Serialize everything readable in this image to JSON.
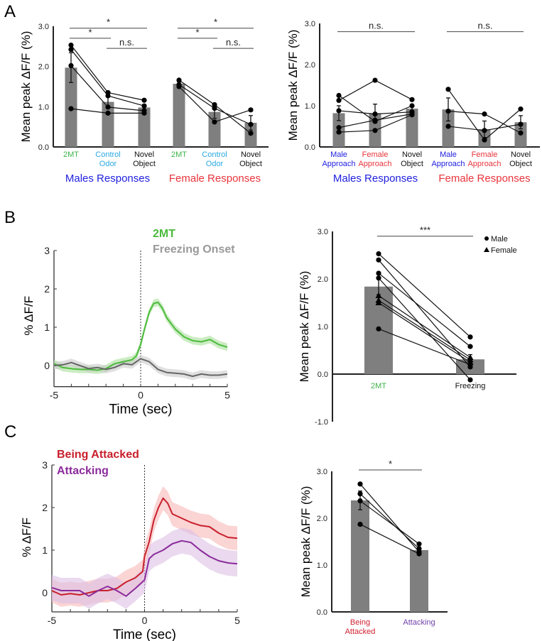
{
  "panel_letters": [
    "A",
    "B",
    "C"
  ],
  "chart_data": [
    {
      "type": "bar",
      "ylabel": "Mean peak  ΔF/F (%)",
      "y_ticks": [
        "0.0",
        "1.0",
        "2.0",
        "3.0"
      ],
      "ylim": [
        0,
        3
      ],
      "groups": [
        {
          "label": "Males Responses",
          "color": "#2020e0",
          "categories": [
            {
              "label": [
                "2MT"
              ],
              "color": "#3cb44a"
            },
            {
              "label": [
                "Control",
                "Odor"
              ],
              "color": "#29a9e0"
            },
            {
              "label": [
                "Novel",
                "Object"
              ],
              "color": "#111111"
            }
          ],
          "means": [
            1.97,
            1.12,
            0.98
          ],
          "sem": [
            0.37,
            0.14,
            0.07
          ],
          "subjects": [
            [
              2.53,
              1.35,
              1.16
            ],
            [
              2.42,
              1.27,
              1.02
            ],
            [
              2.02,
              0.99,
              0.9
            ],
            [
              0.95,
              0.84,
              0.84
            ]
          ]
        },
        {
          "label": "Female Responses",
          "color": "#e8343c",
          "categories": [
            {
              "label": [
                "2MT"
              ],
              "color": "#3cb44a"
            },
            {
              "label": [
                "Control",
                "Odor"
              ],
              "color": "#29a9e0"
            },
            {
              "label": [
                "Novel",
                "Object"
              ],
              "color": "#111111"
            }
          ],
          "means": [
            1.57,
            0.87,
            0.6
          ],
          "sem": [
            0.05,
            0.16,
            0.18
          ],
          "subjects": [
            [
              1.66,
              1.05,
              0.34
            ],
            [
              1.55,
              0.96,
              0.56
            ],
            [
              1.5,
              0.62,
              0.92
            ]
          ]
        }
      ],
      "significance": [
        {
          "from": 0,
          "to": 2,
          "level": 2.95,
          "label": "*"
        },
        {
          "from": 0,
          "to": 1,
          "level": 2.7,
          "label": "*"
        },
        {
          "from": 1,
          "to": 2,
          "level": 2.45,
          "label": "n.s."
        },
        {
          "from": 3,
          "to": 5,
          "level": 2.95,
          "label": "*"
        },
        {
          "from": 3,
          "to": 4,
          "level": 2.7,
          "label": "*"
        },
        {
          "from": 4,
          "to": 5,
          "level": 2.45,
          "label": "n.s."
        }
      ]
    },
    {
      "type": "bar",
      "ylabel": "Mean peak  ΔF/F (%)",
      "y_ticks": [
        "0.0",
        "1.0",
        "2.0",
        "3.0"
      ],
      "ylim": [
        0,
        3
      ],
      "groups": [
        {
          "label": "Males Responses",
          "color": "#2020e0",
          "categories": [
            {
              "label": [
                "Male",
                "Approach"
              ],
              "color": "#2020e0"
            },
            {
              "label": [
                "Female",
                "Approach"
              ],
              "color": "#e8343c"
            },
            {
              "label": [
                "Novel",
                "Object"
              ],
              "color": "#111111"
            }
          ],
          "means": [
            0.82,
            0.82,
            0.93
          ],
          "sem": [
            0.18,
            0.22,
            0.05
          ],
          "subjects": [
            [
              1.25,
              0.62,
              1.0
            ],
            [
              1.13,
              1.62,
              1.15
            ],
            [
              0.88,
              0.8,
              0.85
            ],
            [
              0.47,
              0.65,
              0.8
            ],
            [
              0.36,
              0.4,
              0.78
            ]
          ]
        },
        {
          "label": "Female Responses",
          "color": "#e8343c",
          "categories": [
            {
              "label": [
                "Male",
                "Approach"
              ],
              "color": "#2020e0"
            },
            {
              "label": [
                "Female",
                "Approach"
              ],
              "color": "#e8343c"
            },
            {
              "label": [
                "Novel",
                "Object"
              ],
              "color": "#111111"
            }
          ],
          "means": [
            0.91,
            0.43,
            0.6
          ],
          "sem": [
            0.28,
            0.2,
            0.16
          ],
          "subjects": [
            [
              1.4,
              0.17,
              0.92
            ],
            [
              0.87,
              0.8,
              0.34
            ],
            [
              0.5,
              0.4,
              0.55
            ]
          ]
        }
      ],
      "significance": [
        {
          "from": 0,
          "to": 2,
          "level": 2.8,
          "label": "n.s."
        },
        {
          "from": 3,
          "to": 5,
          "level": 2.8,
          "label": "n.s."
        }
      ]
    },
    {
      "type": "line",
      "xlabel": "Time (sec)",
      "ylabel": "% ΔF/F",
      "xlim": [
        -5,
        5
      ],
      "ylim": [
        -0.55,
        3
      ],
      "x_ticks": [
        "-5",
        "0",
        "5"
      ],
      "y_ticks": [
        "0",
        "1",
        "2",
        "3"
      ],
      "event_marker": 0,
      "series": [
        {
          "name": "2MT",
          "color": "#4cbb3c",
          "band_color": "#a8e09a",
          "sem": 0.1,
          "t": [
            -5,
            -4.5,
            -4,
            -3.5,
            -3,
            -2.5,
            -2,
            -1.5,
            -1,
            -0.5,
            -0.25,
            0,
            0.25,
            0.5,
            0.75,
            1,
            1.25,
            1.5,
            2,
            2.5,
            3,
            3.5,
            4,
            4.5,
            5
          ],
          "y": [
            0.05,
            -0.05,
            -0.08,
            -0.1,
            -0.1,
            -0.12,
            -0.08,
            0.05,
            0.1,
            0.15,
            0.25,
            0.55,
            1.0,
            1.4,
            1.62,
            1.65,
            1.5,
            1.25,
            0.95,
            0.75,
            0.65,
            0.62,
            0.68,
            0.55,
            0.48
          ]
        },
        {
          "name": "Freezing Onset",
          "color": "#666666",
          "label_color": "#999999",
          "band_color": "#cccccc",
          "sem": 0.1,
          "t": [
            -5,
            -4.5,
            -4,
            -3.5,
            -3,
            -2.5,
            -2,
            -1.5,
            -1,
            -0.5,
            0,
            0.5,
            1,
            1.5,
            2,
            2.5,
            3,
            3.5,
            4,
            4.5,
            5
          ],
          "y": [
            0,
            0.02,
            0.08,
            0.0,
            -0.08,
            -0.05,
            -0.1,
            -0.05,
            0.05,
            0.02,
            0.18,
            0.1,
            -0.1,
            -0.18,
            -0.2,
            -0.22,
            -0.28,
            -0.22,
            -0.25,
            -0.25,
            -0.22
          ]
        }
      ]
    },
    {
      "type": "bar",
      "ylabel": "Mean peak  ΔF/F (%)",
      "y_ticks": [
        "-1.0",
        "0.0",
        "1.0",
        "2.0",
        "3.0"
      ],
      "ylim": [
        -1,
        3
      ],
      "legend": [
        {
          "label": "Male",
          "marker": "circle"
        },
        {
          "label": "Female",
          "marker": "triangle"
        }
      ],
      "legend_position": "top-right",
      "groups": [
        {
          "label": "",
          "color": "#000000",
          "categories": [
            {
              "label": [
                "2MT"
              ],
              "color": "#3cb44a"
            },
            {
              "label": [
                "Freezing"
              ],
              "color": "#111111"
            }
          ],
          "means": [
            1.84,
            0.31
          ],
          "sem": [
            0.17,
            0.1
          ],
          "subjects": [
            [
              2.53,
              0.78
            ],
            [
              2.4,
              0.15
            ],
            [
              2.12,
              0.58
            ],
            [
              2.02,
              -0.12
            ],
            [
              1.65,
              0.35
            ],
            [
              1.55,
              0.3
            ],
            [
              1.5,
              0.25
            ],
            [
              0.95,
              0.2
            ]
          ],
          "subject_sex": [
            "Male",
            "Male",
            "Male",
            "Male",
            "Female",
            "Female",
            "Female",
            "Male"
          ]
        }
      ],
      "significance": [
        {
          "from": 0,
          "to": 1,
          "level": 2.9,
          "label": "***"
        }
      ]
    },
    {
      "type": "line",
      "xlabel": "Time (sec)",
      "ylabel": "% ΔF/F",
      "xlim": [
        -5,
        5
      ],
      "ylim": [
        -0.45,
        3
      ],
      "x_ticks": [
        "-5",
        "0",
        "5"
      ],
      "y_ticks": [
        "0",
        "1",
        "2",
        "3"
      ],
      "event_marker": 0,
      "series": [
        {
          "name": "Being Attacked",
          "color": "#c8202c",
          "band_color": "#f8b8b8",
          "sem": 0.28,
          "t": [
            -5,
            -4.5,
            -4,
            -3.5,
            -3,
            -2.5,
            -2,
            -1.5,
            -1,
            -0.5,
            -0.1,
            0,
            0.25,
            0.5,
            0.75,
            1,
            1.25,
            1.5,
            2,
            2.5,
            3,
            3.5,
            4,
            4.5,
            5
          ],
          "y": [
            0.05,
            -0.05,
            -0.02,
            -0.05,
            0,
            0.05,
            0.05,
            0.1,
            0.25,
            0.35,
            0.5,
            0.85,
            1.2,
            1.7,
            2.0,
            2.22,
            2.1,
            1.85,
            1.75,
            1.65,
            1.58,
            1.55,
            1.4,
            1.3,
            1.28
          ]
        },
        {
          "name": "Attacking",
          "color": "#8b2b9b",
          "band_color": "#dcc0e4",
          "sem": 0.3,
          "t": [
            -5,
            -4.5,
            -4,
            -3.5,
            -3,
            -2.5,
            -2,
            -1.5,
            -1,
            -0.5,
            0,
            0.25,
            0.5,
            1,
            1.5,
            2,
            2.5,
            3,
            3.5,
            4,
            4.5,
            5
          ],
          "y": [
            0.12,
            0.05,
            0.05,
            0.05,
            -0.08,
            0.05,
            0.15,
            0.05,
            -0.08,
            0.1,
            0.3,
            0.8,
            0.9,
            1.0,
            1.15,
            1.22,
            1.18,
            1.0,
            0.85,
            0.75,
            0.7,
            0.68
          ]
        }
      ]
    },
    {
      "type": "bar",
      "ylabel": "Mean peak  ΔF/F (%)",
      "y_ticks": [
        "0.0",
        "1.0",
        "2.0",
        "3.0"
      ],
      "ylim": [
        0,
        3
      ],
      "groups": [
        {
          "label": "",
          "color": "#000000",
          "categories": [
            {
              "label": [
                "Being",
                "Attacked"
              ],
              "color": "#d02030"
            },
            {
              "label": [
                "Attacking"
              ],
              "color": "#7040a8"
            }
          ],
          "means": [
            2.38,
            1.32
          ],
          "sem": [
            0.2,
            0.05
          ],
          "subjects": [
            [
              2.73,
              1.28
            ],
            [
              2.52,
              1.35
            ],
            [
              2.37,
              1.45
            ],
            [
              1.87,
              1.24
            ]
          ]
        }
      ],
      "significance": [
        {
          "from": 0,
          "to": 1,
          "level": 3.03,
          "label": "*"
        }
      ]
    }
  ]
}
